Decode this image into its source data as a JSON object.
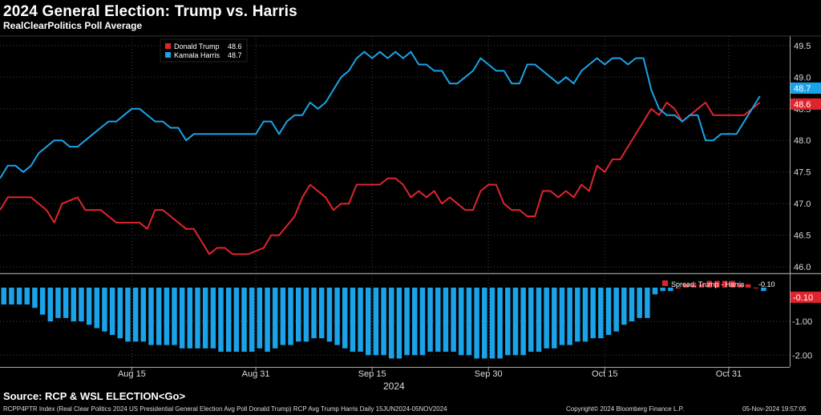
{
  "header": {
    "title": "2024 General Election: Trump vs. Harris",
    "subtitle": "RealClearPolitics Poll Average"
  },
  "colors": {
    "trump": "#e0242c",
    "harris": "#1aa3e8",
    "grid": "#444444",
    "axis": "#cccccc"
  },
  "chart_data": {
    "type": "line",
    "x_type": "date",
    "x_start": "2024-07-29",
    "x_end": "2024-11-05",
    "x_ticks": [
      {
        "date": "2024-08-15",
        "label": "Aug 15"
      },
      {
        "date": "2024-08-31",
        "label": "Aug 31"
      },
      {
        "date": "2024-09-15",
        "label": "Sep 15"
      },
      {
        "date": "2024-09-30",
        "label": "Sep 30"
      },
      {
        "date": "2024-10-15",
        "label": "Oct 15"
      },
      {
        "date": "2024-10-31",
        "label": "Oct 31"
      }
    ],
    "year_label": "2024",
    "top_panel": {
      "ylim": [
        45.9,
        49.65
      ],
      "yticks": [
        "46.0",
        "46.5",
        "47.0",
        "47.5",
        "48.0",
        "48.5",
        "49.0",
        "49.5"
      ],
      "legend": [
        {
          "name": "Donald Trump",
          "value": "48.6",
          "color": "#e0242c"
        },
        {
          "name": "Kamala Harris",
          "value": "48.7",
          "color": "#1aa3e8"
        }
      ],
      "last_value_labels": [
        {
          "text": "48.7",
          "value": 48.7,
          "color": "#1aa3e8"
        },
        {
          "text": "48.6",
          "value": 48.6,
          "color": "#e0242c"
        }
      ],
      "series": [
        {
          "name": "Donald Trump",
          "color": "#e0242c",
          "points": [
            [
              "2024-07-29",
              46.9
            ],
            [
              "2024-07-30",
              47.1
            ],
            [
              "2024-08-02",
              47.1
            ],
            [
              "2024-08-04",
              46.9
            ],
            [
              "2024-08-05",
              46.7
            ],
            [
              "2024-08-06",
              47.0
            ],
            [
              "2024-08-08",
              47.1
            ],
            [
              "2024-08-09",
              46.9
            ],
            [
              "2024-08-11",
              46.9
            ],
            [
              "2024-08-13",
              46.7
            ],
            [
              "2024-08-16",
              46.7
            ],
            [
              "2024-08-17",
              46.6
            ],
            [
              "2024-08-18",
              46.9
            ],
            [
              "2024-08-19",
              46.9
            ],
            [
              "2024-08-22",
              46.6
            ],
            [
              "2024-08-23",
              46.6
            ],
            [
              "2024-08-25",
              46.2
            ],
            [
              "2024-08-26",
              46.3
            ],
            [
              "2024-08-27",
              46.3
            ],
            [
              "2024-08-28",
              46.2
            ],
            [
              "2024-08-30",
              46.2
            ],
            [
              "2024-09-01",
              46.3
            ],
            [
              "2024-09-02",
              46.5
            ],
            [
              "2024-09-03",
              46.5
            ],
            [
              "2024-09-05",
              46.8
            ],
            [
              "2024-09-06",
              47.1
            ],
            [
              "2024-09-07",
              47.3
            ],
            [
              "2024-09-09",
              47.1
            ],
            [
              "2024-09-10",
              46.9
            ],
            [
              "2024-09-11",
              47.0
            ],
            [
              "2024-09-12",
              47.0
            ],
            [
              "2024-09-13",
              47.3
            ],
            [
              "2024-09-16",
              47.3
            ],
            [
              "2024-09-17",
              47.4
            ],
            [
              "2024-09-18",
              47.4
            ],
            [
              "2024-09-19",
              47.3
            ],
            [
              "2024-09-20",
              47.1
            ],
            [
              "2024-09-21",
              47.2
            ],
            [
              "2024-09-22",
              47.1
            ],
            [
              "2024-09-23",
              47.2
            ],
            [
              "2024-09-24",
              47.0
            ],
            [
              "2024-09-25",
              47.1
            ],
            [
              "2024-09-26",
              47.0
            ],
            [
              "2024-09-27",
              46.9
            ],
            [
              "2024-09-28",
              46.9
            ],
            [
              "2024-09-29",
              47.2
            ],
            [
              "2024-09-30",
              47.3
            ],
            [
              "2024-10-01",
              47.3
            ],
            [
              "2024-10-02",
              47.0
            ],
            [
              "2024-10-03",
              46.9
            ],
            [
              "2024-10-04",
              46.9
            ],
            [
              "2024-10-05",
              46.8
            ],
            [
              "2024-10-06",
              46.8
            ],
            [
              "2024-10-07",
              47.2
            ],
            [
              "2024-10-08",
              47.2
            ],
            [
              "2024-10-09",
              47.1
            ],
            [
              "2024-10-10",
              47.2
            ],
            [
              "2024-10-11",
              47.1
            ],
            [
              "2024-10-12",
              47.3
            ],
            [
              "2024-10-13",
              47.2
            ],
            [
              "2024-10-14",
              47.6
            ],
            [
              "2024-10-15",
              47.5
            ],
            [
              "2024-10-16",
              47.7
            ],
            [
              "2024-10-17",
              47.7
            ],
            [
              "2024-10-21",
              48.5
            ],
            [
              "2024-10-22",
              48.4
            ],
            [
              "2024-10-23",
              48.6
            ],
            [
              "2024-10-24",
              48.5
            ],
            [
              "2024-10-25",
              48.3
            ],
            [
              "2024-10-26",
              48.4
            ],
            [
              "2024-10-28",
              48.6
            ],
            [
              "2024-10-29",
              48.4
            ],
            [
              "2024-11-01",
              48.4
            ],
            [
              "2024-11-02",
              48.4
            ],
            [
              "2024-11-03",
              48.5
            ],
            [
              "2024-11-04",
              48.6
            ]
          ]
        },
        {
          "name": "Kamala Harris",
          "color": "#1aa3e8",
          "points": [
            [
              "2024-07-29",
              47.4
            ],
            [
              "2024-07-30",
              47.6
            ],
            [
              "2024-07-31",
              47.6
            ],
            [
              "2024-08-01",
              47.5
            ],
            [
              "2024-08-02",
              47.6
            ],
            [
              "2024-08-03",
              47.8
            ],
            [
              "2024-08-05",
              48.0
            ],
            [
              "2024-08-06",
              48.0
            ],
            [
              "2024-08-07",
              47.9
            ],
            [
              "2024-08-08",
              47.9
            ],
            [
              "2024-08-10",
              48.1
            ],
            [
              "2024-08-12",
              48.3
            ],
            [
              "2024-08-13",
              48.3
            ],
            [
              "2024-08-14",
              48.4
            ],
            [
              "2024-08-15",
              48.5
            ],
            [
              "2024-08-16",
              48.5
            ],
            [
              "2024-08-18",
              48.3
            ],
            [
              "2024-08-19",
              48.3
            ],
            [
              "2024-08-20",
              48.2
            ],
            [
              "2024-08-21",
              48.2
            ],
            [
              "2024-08-22",
              48.0
            ],
            [
              "2024-08-23",
              48.1
            ],
            [
              "2024-08-31",
              48.1
            ],
            [
              "2024-09-01",
              48.3
            ],
            [
              "2024-09-02",
              48.3
            ],
            [
              "2024-09-03",
              48.1
            ],
            [
              "2024-09-04",
              48.3
            ],
            [
              "2024-09-05",
              48.4
            ],
            [
              "2024-09-06",
              48.4
            ],
            [
              "2024-09-07",
              48.6
            ],
            [
              "2024-09-08",
              48.5
            ],
            [
              "2024-09-09",
              48.6
            ],
            [
              "2024-09-10",
              48.8
            ],
            [
              "2024-09-11",
              49.0
            ],
            [
              "2024-09-12",
              49.1
            ],
            [
              "2024-09-13",
              49.3
            ],
            [
              "2024-09-14",
              49.4
            ],
            [
              "2024-09-15",
              49.3
            ],
            [
              "2024-09-16",
              49.4
            ],
            [
              "2024-09-17",
              49.3
            ],
            [
              "2024-09-18",
              49.4
            ],
            [
              "2024-09-19",
              49.3
            ],
            [
              "2024-09-20",
              49.4
            ],
            [
              "2024-09-21",
              49.2
            ],
            [
              "2024-09-22",
              49.2
            ],
            [
              "2024-09-23",
              49.1
            ],
            [
              "2024-09-24",
              49.1
            ],
            [
              "2024-09-25",
              48.9
            ],
            [
              "2024-09-26",
              48.9
            ],
            [
              "2024-09-28",
              49.1
            ],
            [
              "2024-09-29",
              49.3
            ],
            [
              "2024-09-30",
              49.2
            ],
            [
              "2024-10-01",
              49.1
            ],
            [
              "2024-10-02",
              49.1
            ],
            [
              "2024-10-03",
              48.9
            ],
            [
              "2024-10-04",
              48.9
            ],
            [
              "2024-10-05",
              49.2
            ],
            [
              "2024-10-06",
              49.2
            ],
            [
              "2024-10-07",
              49.1
            ],
            [
              "2024-10-08",
              49.0
            ],
            [
              "2024-10-09",
              48.9
            ],
            [
              "2024-10-10",
              49.0
            ],
            [
              "2024-10-11",
              48.9
            ],
            [
              "2024-10-12",
              49.1
            ],
            [
              "2024-10-14",
              49.3
            ],
            [
              "2024-10-15",
              49.2
            ],
            [
              "2024-10-16",
              49.3
            ],
            [
              "2024-10-17",
              49.3
            ],
            [
              "2024-10-18",
              49.2
            ],
            [
              "2024-10-19",
              49.3
            ],
            [
              "2024-10-20",
              49.3
            ],
            [
              "2024-10-21",
              48.8
            ],
            [
              "2024-10-22",
              48.5
            ],
            [
              "2024-10-23",
              48.4
            ],
            [
              "2024-10-24",
              48.4
            ],
            [
              "2024-10-25",
              48.3
            ],
            [
              "2024-10-26",
              48.4
            ],
            [
              "2024-10-27",
              48.4
            ],
            [
              "2024-10-28",
              48.0
            ],
            [
              "2024-10-29",
              48.0
            ],
            [
              "2024-10-30",
              48.1
            ],
            [
              "2024-11-01",
              48.1
            ],
            [
              "2024-11-03",
              48.5
            ],
            [
              "2024-11-04",
              48.7
            ]
          ]
        }
      ]
    },
    "bottom_panel": {
      "type": "bar",
      "ylim": [
        -2.35,
        0.38
      ],
      "yticks": [
        "-1.00",
        "-2.00"
      ],
      "legend": {
        "name": "Spread: Trump - Harris",
        "value": "-0.10",
        "color": "#e0242c"
      },
      "last_value_label": {
        "text": "-0.10",
        "value": -0.1,
        "color": "#e0242c"
      },
      "positive_color": "#e0242c",
      "negative_color": "#1aa3e8",
      "x_start": "2024-07-29",
      "values": [
        -0.5,
        -0.5,
        -0.5,
        -0.5,
        -0.6,
        -0.8,
        -1.0,
        -0.9,
        -0.9,
        -1.0,
        -1.0,
        -1.1,
        -1.2,
        -1.3,
        -1.4,
        -1.5,
        -1.6,
        -1.6,
        -1.6,
        -1.7,
        -1.7,
        -1.7,
        -1.7,
        -1.8,
        -1.8,
        -1.8,
        -1.8,
        -1.8,
        -1.9,
        -1.9,
        -1.9,
        -1.9,
        -1.9,
        -1.8,
        -1.9,
        -1.8,
        -1.7,
        -1.7,
        -1.6,
        -1.6,
        -1.5,
        -1.5,
        -1.6,
        -1.7,
        -1.8,
        -1.9,
        -1.9,
        -2.0,
        -2.0,
        -2.0,
        -2.1,
        -2.1,
        -2.0,
        -2.0,
        -2.0,
        -1.9,
        -1.9,
        -1.9,
        -1.9,
        -2.0,
        -2.0,
        -2.1,
        -2.1,
        -2.1,
        -2.1,
        -2.0,
        -2.0,
        -2.0,
        -1.9,
        -1.9,
        -1.8,
        -1.8,
        -1.7,
        -1.7,
        -1.6,
        -1.6,
        -1.5,
        -1.5,
        -1.4,
        -1.3,
        -1.1,
        -1.0,
        -0.9,
        -0.9,
        -0.2,
        -0.1,
        -0.1,
        0.0,
        0.1,
        0.1,
        0.1,
        0.2,
        0.2,
        0.2,
        0.2,
        0.1,
        0.1,
        0.0,
        -0.1
      ]
    }
  },
  "footer": {
    "source": "Source: RCP & WSL ELECTION<Go>",
    "description": "RCPP4PTR Index (Real Clear Politics 2024 US Presidential General Election Avg Poll Donald Trump) RCP Avg Trump Harris  Daily 15JUN2024-05NOV2024",
    "copyright": "Copyright© 2024 Bloomberg Finance L.P.",
    "timestamp": "05-Nov-2024 19:57:05"
  }
}
